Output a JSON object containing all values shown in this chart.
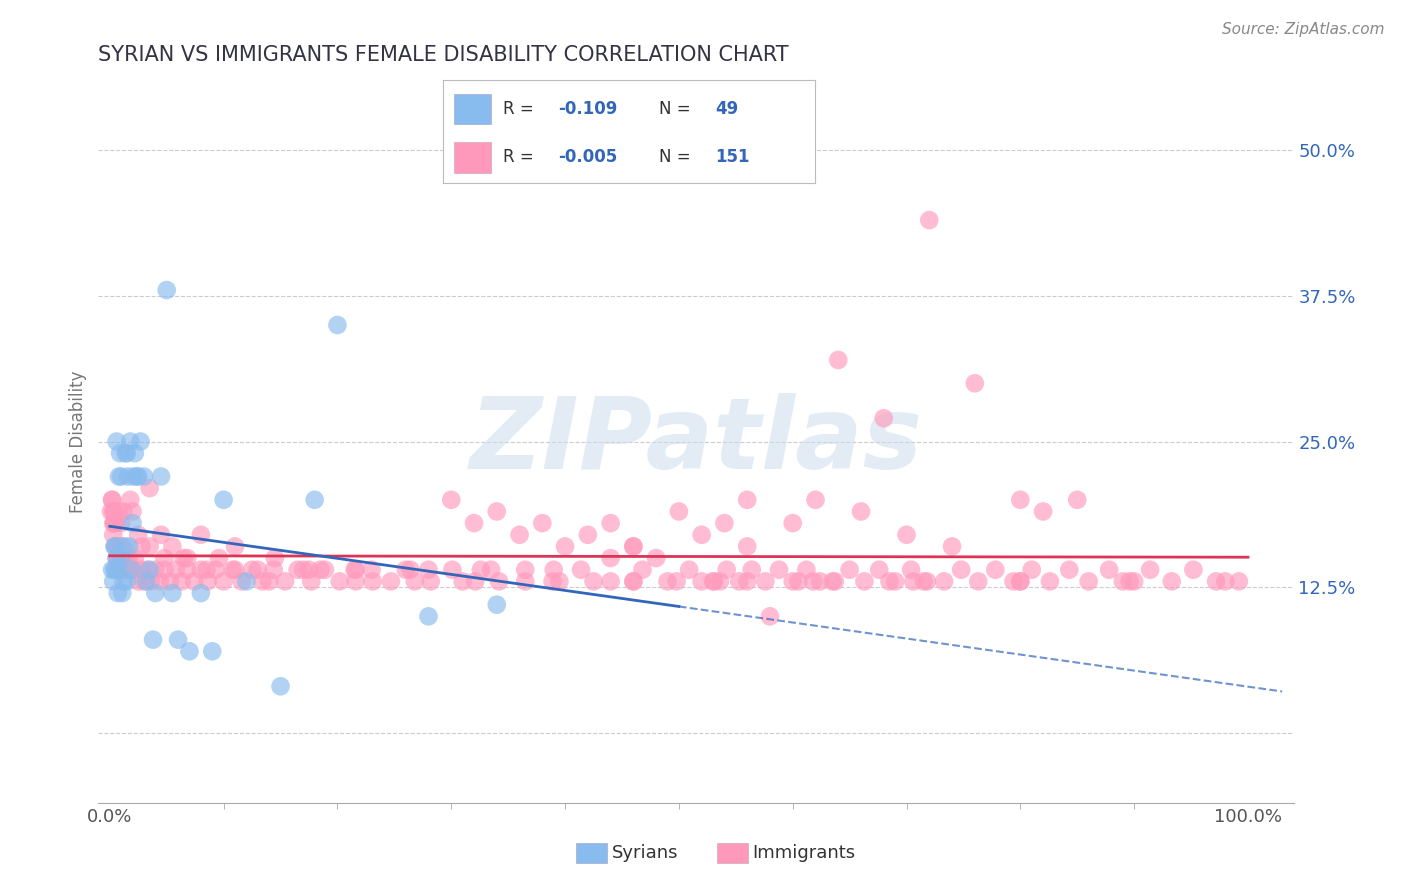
{
  "title": "SYRIAN VS IMMIGRANTS FEMALE DISABILITY CORRELATION CHART",
  "source": "Source: ZipAtlas.com",
  "ylabel": "Female Disability",
  "y_ticks": [
    0.0,
    0.125,
    0.25,
    0.375,
    0.5
  ],
  "y_tick_labels_right": [
    "",
    "12.5%",
    "25.0%",
    "37.5%",
    "50.0%"
  ],
  "xlim": [
    -0.01,
    1.04
  ],
  "ylim": [
    -0.06,
    0.56
  ],
  "syrian_color": "#88BBEE",
  "immigrant_color": "#FF99BB",
  "syrian_line_color": "#3366BB",
  "immigrant_line_color": "#DD3355",
  "background_color": "#ffffff",
  "grid_color": "#cccccc",
  "title_color": "#333344",
  "watermark_text": "ZIPatlas",
  "legend_text_color": "#3366BB",
  "syrian_x": [
    0.002,
    0.003,
    0.004,
    0.004,
    0.005,
    0.005,
    0.006,
    0.006,
    0.007,
    0.007,
    0.008,
    0.009,
    0.01,
    0.01,
    0.011,
    0.012,
    0.013,
    0.014,
    0.015,
    0.015,
    0.016,
    0.017,
    0.018,
    0.019,
    0.02,
    0.021,
    0.022,
    0.024,
    0.025,
    0.027,
    0.03,
    0.032,
    0.035,
    0.038,
    0.04,
    0.045,
    0.05,
    0.055,
    0.06,
    0.07,
    0.08,
    0.09,
    0.1,
    0.12,
    0.15,
    0.18,
    0.2,
    0.28,
    0.34
  ],
  "syrian_y": [
    0.14,
    0.13,
    0.16,
    0.14,
    0.16,
    0.14,
    0.15,
    0.25,
    0.12,
    0.14,
    0.22,
    0.24,
    0.15,
    0.22,
    0.12,
    0.13,
    0.16,
    0.24,
    0.13,
    0.24,
    0.22,
    0.16,
    0.25,
    0.14,
    0.18,
    0.22,
    0.24,
    0.22,
    0.22,
    0.25,
    0.22,
    0.13,
    0.14,
    0.08,
    0.12,
    0.22,
    0.38,
    0.12,
    0.08,
    0.07,
    0.12,
    0.07,
    0.2,
    0.13,
    0.04,
    0.2,
    0.35,
    0.1,
    0.11
  ],
  "immigrant_x": [
    0.001,
    0.002,
    0.003,
    0.003,
    0.004,
    0.005,
    0.006,
    0.007,
    0.008,
    0.009,
    0.01,
    0.011,
    0.012,
    0.013,
    0.014,
    0.015,
    0.016,
    0.017,
    0.018,
    0.02,
    0.022,
    0.025,
    0.028,
    0.03,
    0.033,
    0.036,
    0.04,
    0.044,
    0.048,
    0.053,
    0.058,
    0.063,
    0.068,
    0.074,
    0.08,
    0.086,
    0.093,
    0.1,
    0.108,
    0.116,
    0.125,
    0.134,
    0.144,
    0.154,
    0.165,
    0.177,
    0.189,
    0.202,
    0.216,
    0.231,
    0.247,
    0.264,
    0.282,
    0.301,
    0.321,
    0.342,
    0.365,
    0.389,
    0.414,
    0.44,
    0.468,
    0.498,
    0.509,
    0.52,
    0.531,
    0.542,
    0.553,
    0.564,
    0.576,
    0.588,
    0.6,
    0.612,
    0.624,
    0.637,
    0.65,
    0.663,
    0.676,
    0.69,
    0.704,
    0.718,
    0.733,
    0.748,
    0.763,
    0.778,
    0.794,
    0.81,
    0.826,
    0.843,
    0.86,
    0.878,
    0.896,
    0.914,
    0.933,
    0.952,
    0.972,
    0.992,
    0.005,
    0.008,
    0.012,
    0.018,
    0.025,
    0.035,
    0.048,
    0.065,
    0.085,
    0.11,
    0.14,
    0.175,
    0.215,
    0.26,
    0.31,
    0.365,
    0.425,
    0.49,
    0.56,
    0.635,
    0.715,
    0.8,
    0.89,
    0.98,
    0.007,
    0.015,
    0.028,
    0.045,
    0.068,
    0.096,
    0.13,
    0.17,
    0.216,
    0.268,
    0.326,
    0.39,
    0.46,
    0.536,
    0.618,
    0.706,
    0.8,
    0.9,
    0.004,
    0.01,
    0.02,
    0.035,
    0.055,
    0.08,
    0.11,
    0.145,
    0.185,
    0.23,
    0.28,
    0.335,
    0.395,
    0.46,
    0.53,
    0.605,
    0.685
  ],
  "immigrant_y": [
    0.19,
    0.2,
    0.17,
    0.19,
    0.18,
    0.16,
    0.15,
    0.15,
    0.16,
    0.14,
    0.15,
    0.16,
    0.14,
    0.15,
    0.15,
    0.14,
    0.14,
    0.15,
    0.14,
    0.14,
    0.15,
    0.13,
    0.14,
    0.13,
    0.14,
    0.13,
    0.14,
    0.13,
    0.14,
    0.13,
    0.14,
    0.13,
    0.14,
    0.13,
    0.14,
    0.13,
    0.14,
    0.13,
    0.14,
    0.13,
    0.14,
    0.13,
    0.14,
    0.13,
    0.14,
    0.13,
    0.14,
    0.13,
    0.14,
    0.13,
    0.13,
    0.14,
    0.13,
    0.14,
    0.13,
    0.13,
    0.14,
    0.13,
    0.14,
    0.13,
    0.14,
    0.13,
    0.14,
    0.13,
    0.13,
    0.14,
    0.13,
    0.14,
    0.13,
    0.14,
    0.13,
    0.14,
    0.13,
    0.13,
    0.14,
    0.13,
    0.14,
    0.13,
    0.14,
    0.13,
    0.13,
    0.14,
    0.13,
    0.14,
    0.13,
    0.14,
    0.13,
    0.14,
    0.13,
    0.14,
    0.13,
    0.14,
    0.13,
    0.14,
    0.13,
    0.13,
    0.18,
    0.19,
    0.19,
    0.2,
    0.17,
    0.16,
    0.15,
    0.15,
    0.14,
    0.14,
    0.13,
    0.14,
    0.14,
    0.14,
    0.13,
    0.13,
    0.13,
    0.13,
    0.13,
    0.13,
    0.13,
    0.13,
    0.13,
    0.13,
    0.16,
    0.14,
    0.16,
    0.17,
    0.15,
    0.15,
    0.14,
    0.14,
    0.13,
    0.13,
    0.14,
    0.14,
    0.13,
    0.13,
    0.13,
    0.13,
    0.13,
    0.13,
    0.18,
    0.18,
    0.19,
    0.21,
    0.16,
    0.17,
    0.16,
    0.15,
    0.14,
    0.14,
    0.14,
    0.14,
    0.13,
    0.13,
    0.13,
    0.13,
    0.13
  ],
  "special_immigrant_points": [
    [
      0.002,
      0.2
    ],
    [
      0.003,
      0.18
    ],
    [
      0.004,
      0.19
    ],
    [
      0.72,
      0.44
    ],
    [
      0.64,
      0.32
    ],
    [
      0.76,
      0.3
    ],
    [
      0.68,
      0.27
    ],
    [
      0.56,
      0.2
    ],
    [
      0.5,
      0.19
    ],
    [
      0.58,
      0.1
    ],
    [
      0.48,
      0.15
    ],
    [
      0.46,
      0.16
    ],
    [
      0.52,
      0.17
    ],
    [
      0.54,
      0.18
    ],
    [
      0.56,
      0.16
    ],
    [
      0.6,
      0.18
    ],
    [
      0.62,
      0.2
    ],
    [
      0.66,
      0.19
    ],
    [
      0.7,
      0.17
    ],
    [
      0.74,
      0.16
    ],
    [
      0.8,
      0.2
    ],
    [
      0.82,
      0.19
    ],
    [
      0.85,
      0.2
    ],
    [
      0.3,
      0.2
    ],
    [
      0.32,
      0.18
    ],
    [
      0.34,
      0.19
    ],
    [
      0.36,
      0.17
    ],
    [
      0.38,
      0.18
    ],
    [
      0.4,
      0.16
    ],
    [
      0.42,
      0.17
    ],
    [
      0.44,
      0.15
    ],
    [
      0.46,
      0.16
    ],
    [
      0.44,
      0.18
    ]
  ]
}
